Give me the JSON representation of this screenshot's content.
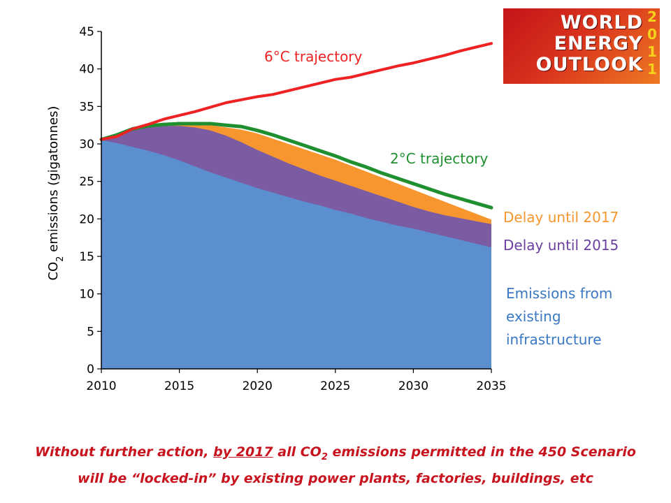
{
  "logo": {
    "lines": [
      "WORLD",
      "ENERGY",
      "OUTLOOK"
    ],
    "year_digits": [
      "2",
      "0",
      "1",
      "1"
    ]
  },
  "chart_data": {
    "type": "area",
    "title": "",
    "ylabel": "CO2 emissions (gigatonnes)",
    "xlabel": "",
    "xlim": [
      2010,
      2035
    ],
    "ylim": [
      0,
      45
    ],
    "x_ticks": [
      "2010",
      "2015",
      "2020",
      "2025",
      "2030",
      "2035"
    ],
    "y_ticks": [
      "0",
      "5",
      "10",
      "15",
      "20",
      "25",
      "30",
      "35",
      "40",
      "45"
    ],
    "x": [
      2010,
      2011,
      2012,
      2013,
      2014,
      2015,
      2016,
      2017,
      2018,
      2019,
      2020,
      2021,
      2022,
      2023,
      2024,
      2025,
      2026,
      2027,
      2028,
      2029,
      2030,
      2031,
      2032,
      2033,
      2034,
      2035
    ],
    "series": [
      {
        "name": "Emissions from existing infrastructure",
        "kind": "area",
        "color": "#5b8fd0",
        "values": [
          30.5,
          30.1,
          29.6,
          29.1,
          28.5,
          27.8,
          27.0,
          26.2,
          25.5,
          24.8,
          24.1,
          23.5,
          22.9,
          22.3,
          21.8,
          21.2,
          20.7,
          20.1,
          19.6,
          19.1,
          18.7,
          18.2,
          17.7,
          17.2,
          16.7,
          16.2
        ]
      },
      {
        "name": "Delay until 2015",
        "kind": "area",
        "color": "#7b5ca3",
        "values": [
          30.5,
          31.0,
          31.8,
          32.2,
          32.4,
          32.4,
          32.2,
          31.8,
          31.1,
          30.2,
          29.2,
          28.3,
          27.4,
          26.6,
          25.8,
          25.1,
          24.4,
          23.7,
          23.0,
          22.3,
          21.6,
          21.0,
          20.5,
          20.1,
          19.7,
          19.3
        ]
      },
      {
        "name": "Delay until 2017",
        "kind": "area",
        "color": "#f7962f",
        "values": [
          30.5,
          31.0,
          31.8,
          32.3,
          32.5,
          32.5,
          32.5,
          32.5,
          32.2,
          31.9,
          31.4,
          30.7,
          30.0,
          29.3,
          28.6,
          27.9,
          27.1,
          26.3,
          25.5,
          24.7,
          23.9,
          23.1,
          22.3,
          21.5,
          20.7,
          19.9
        ]
      },
      {
        "name": "2°C trajectory",
        "kind": "line",
        "color": "#1f8f2f",
        "values": [
          30.6,
          31.2,
          32.0,
          32.4,
          32.6,
          32.7,
          32.7,
          32.7,
          32.5,
          32.3,
          31.8,
          31.2,
          30.5,
          29.8,
          29.1,
          28.4,
          27.6,
          26.9,
          26.1,
          25.4,
          24.7,
          24.0,
          23.3,
          22.7,
          22.1,
          21.5
        ]
      },
      {
        "name": "6°C trajectory",
        "kind": "line",
        "color": "#ee2222",
        "values": [
          30.6,
          31.0,
          32.0,
          32.6,
          33.3,
          33.8,
          34.3,
          34.9,
          35.5,
          35.9,
          36.3,
          36.6,
          37.1,
          37.6,
          38.1,
          38.6,
          38.9,
          39.4,
          39.9,
          40.4,
          40.8,
          41.3,
          41.8,
          42.4,
          42.9,
          43.4
        ]
      }
    ],
    "labels": {
      "six": "6°C trajectory",
      "two": "2°C trajectory",
      "delay2017": "Delay until 2017",
      "delay2015": "Delay until 2015",
      "existing_lines": [
        "Emissions from",
        "existing",
        "infrastructure"
      ]
    }
  },
  "caption": {
    "line1_prefix": "Without further action, ",
    "line1_underlined": "by 2017",
    "line1_suffix_a": " all CO",
    "line1_subscript": "2",
    "line1_suffix_b": " emissions permitted in the 450 Scenario",
    "line2": "will be “locked-in” by existing power plants, factories, buildings, etc"
  }
}
